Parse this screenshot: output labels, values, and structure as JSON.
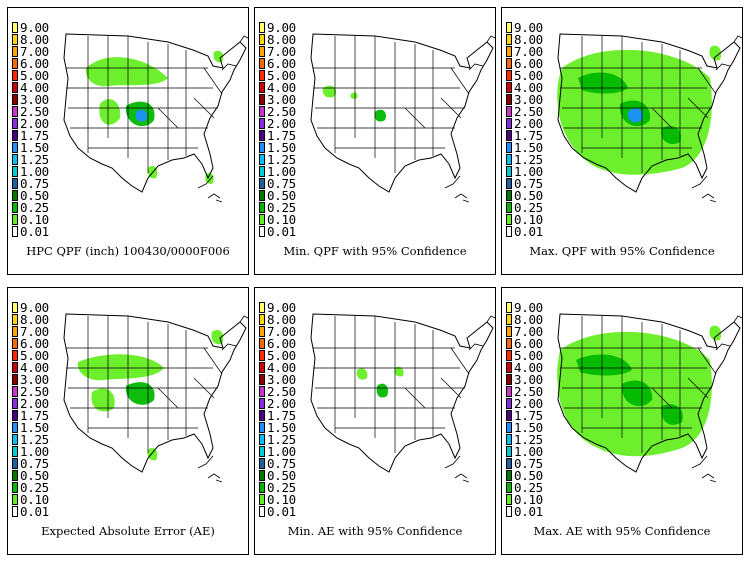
{
  "legend": {
    "levels": [
      "9.00",
      "8.00",
      "7.00",
      "6.00",
      "5.00",
      "4.00",
      "3.00",
      "2.50",
      "2.00",
      "1.75",
      "1.50",
      "1.25",
      "1.00",
      "0.75",
      "0.50",
      "0.25",
      "0.10",
      "0.01"
    ],
    "colors": [
      "#ffff66",
      "#ffd700",
      "#ffa500",
      "#ff6a00",
      "#ff2a00",
      "#cc0000",
      "#8b0000",
      "#cc33cc",
      "#8a2be2",
      "#4b0082",
      "#1e90ff",
      "#00bfff",
      "#00ced1",
      "#2060a0",
      "#007a00",
      "#00b800",
      "#66ee22",
      "#ffffff"
    ]
  },
  "panels": [
    {
      "caption": "HPC QPF (inch) 100430/0000F006"
    },
    {
      "caption": "Min. QPF with 95% Confidence"
    },
    {
      "caption": "Max. QPF with 95% Confidence"
    },
    {
      "caption": "Expected Absolute Error (AE)"
    },
    {
      "caption": "Min. AE with 95% Confidence"
    },
    {
      "caption": "Max. AE with 95% Confidence"
    }
  ]
}
